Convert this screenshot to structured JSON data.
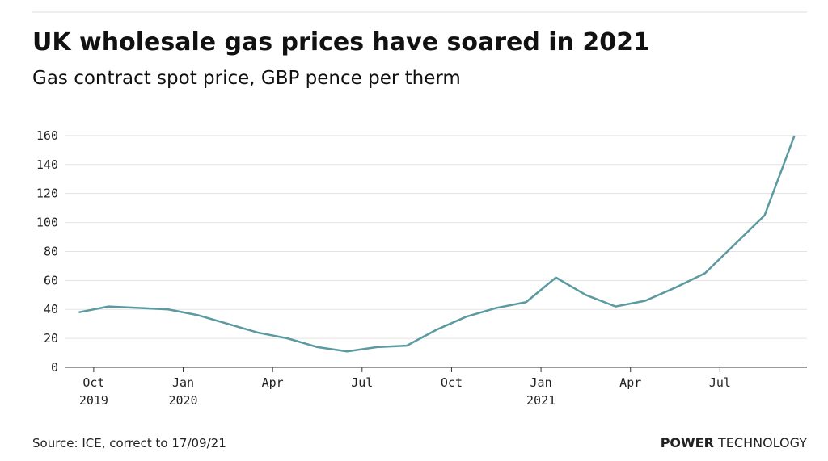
{
  "chart_data": {
    "type": "line",
    "title": "UK wholesale gas prices have soared in 2021",
    "subtitle": "Gas contract spot price, GBP pence per therm",
    "source": "Source: ICE, correct to 17/09/21",
    "brand": [
      "POWER",
      "TECHNOLOGY"
    ],
    "x": [
      "2019-09",
      "2019-10",
      "2019-11",
      "2019-12",
      "2020-01",
      "2020-02",
      "2020-03",
      "2020-04",
      "2020-05",
      "2020-06",
      "2020-07",
      "2020-08",
      "2020-09",
      "2020-10",
      "2020-11",
      "2020-12",
      "2021-01",
      "2021-02",
      "2021-03",
      "2021-04",
      "2021-05",
      "2021-06",
      "2021-07",
      "2021-08",
      "2021-09"
    ],
    "series": [
      {
        "name": "Gas contract spot price",
        "color": "#5b9aa0",
        "values": [
          38,
          42,
          41,
          40,
          36,
          30,
          24,
          20,
          14,
          11,
          14,
          15,
          26,
          35,
          41,
          45,
          62,
          50,
          42,
          46,
          55,
          65,
          85,
          105,
          160
        ]
      }
    ],
    "xlim": [
      "2019-09",
      "2021-10"
    ],
    "xticks": [
      {
        "value": "2019-10",
        "label": "Oct 2019"
      },
      {
        "value": "2020-01",
        "label": "Jan 2020"
      },
      {
        "value": "2020-04",
        "label": "Apr"
      },
      {
        "value": "2020-07",
        "label": "Jul"
      },
      {
        "value": "2020-10",
        "label": "Oct"
      },
      {
        "value": "2021-01",
        "label": "Jan 2021"
      },
      {
        "value": "2021-04",
        "label": "Apr"
      },
      {
        "value": "2021-07",
        "label": "Jul"
      }
    ],
    "ylim": [
      0,
      175
    ],
    "yticks": [
      0,
      20,
      40,
      60,
      80,
      100,
      120,
      140,
      160
    ],
    "grid": true
  }
}
